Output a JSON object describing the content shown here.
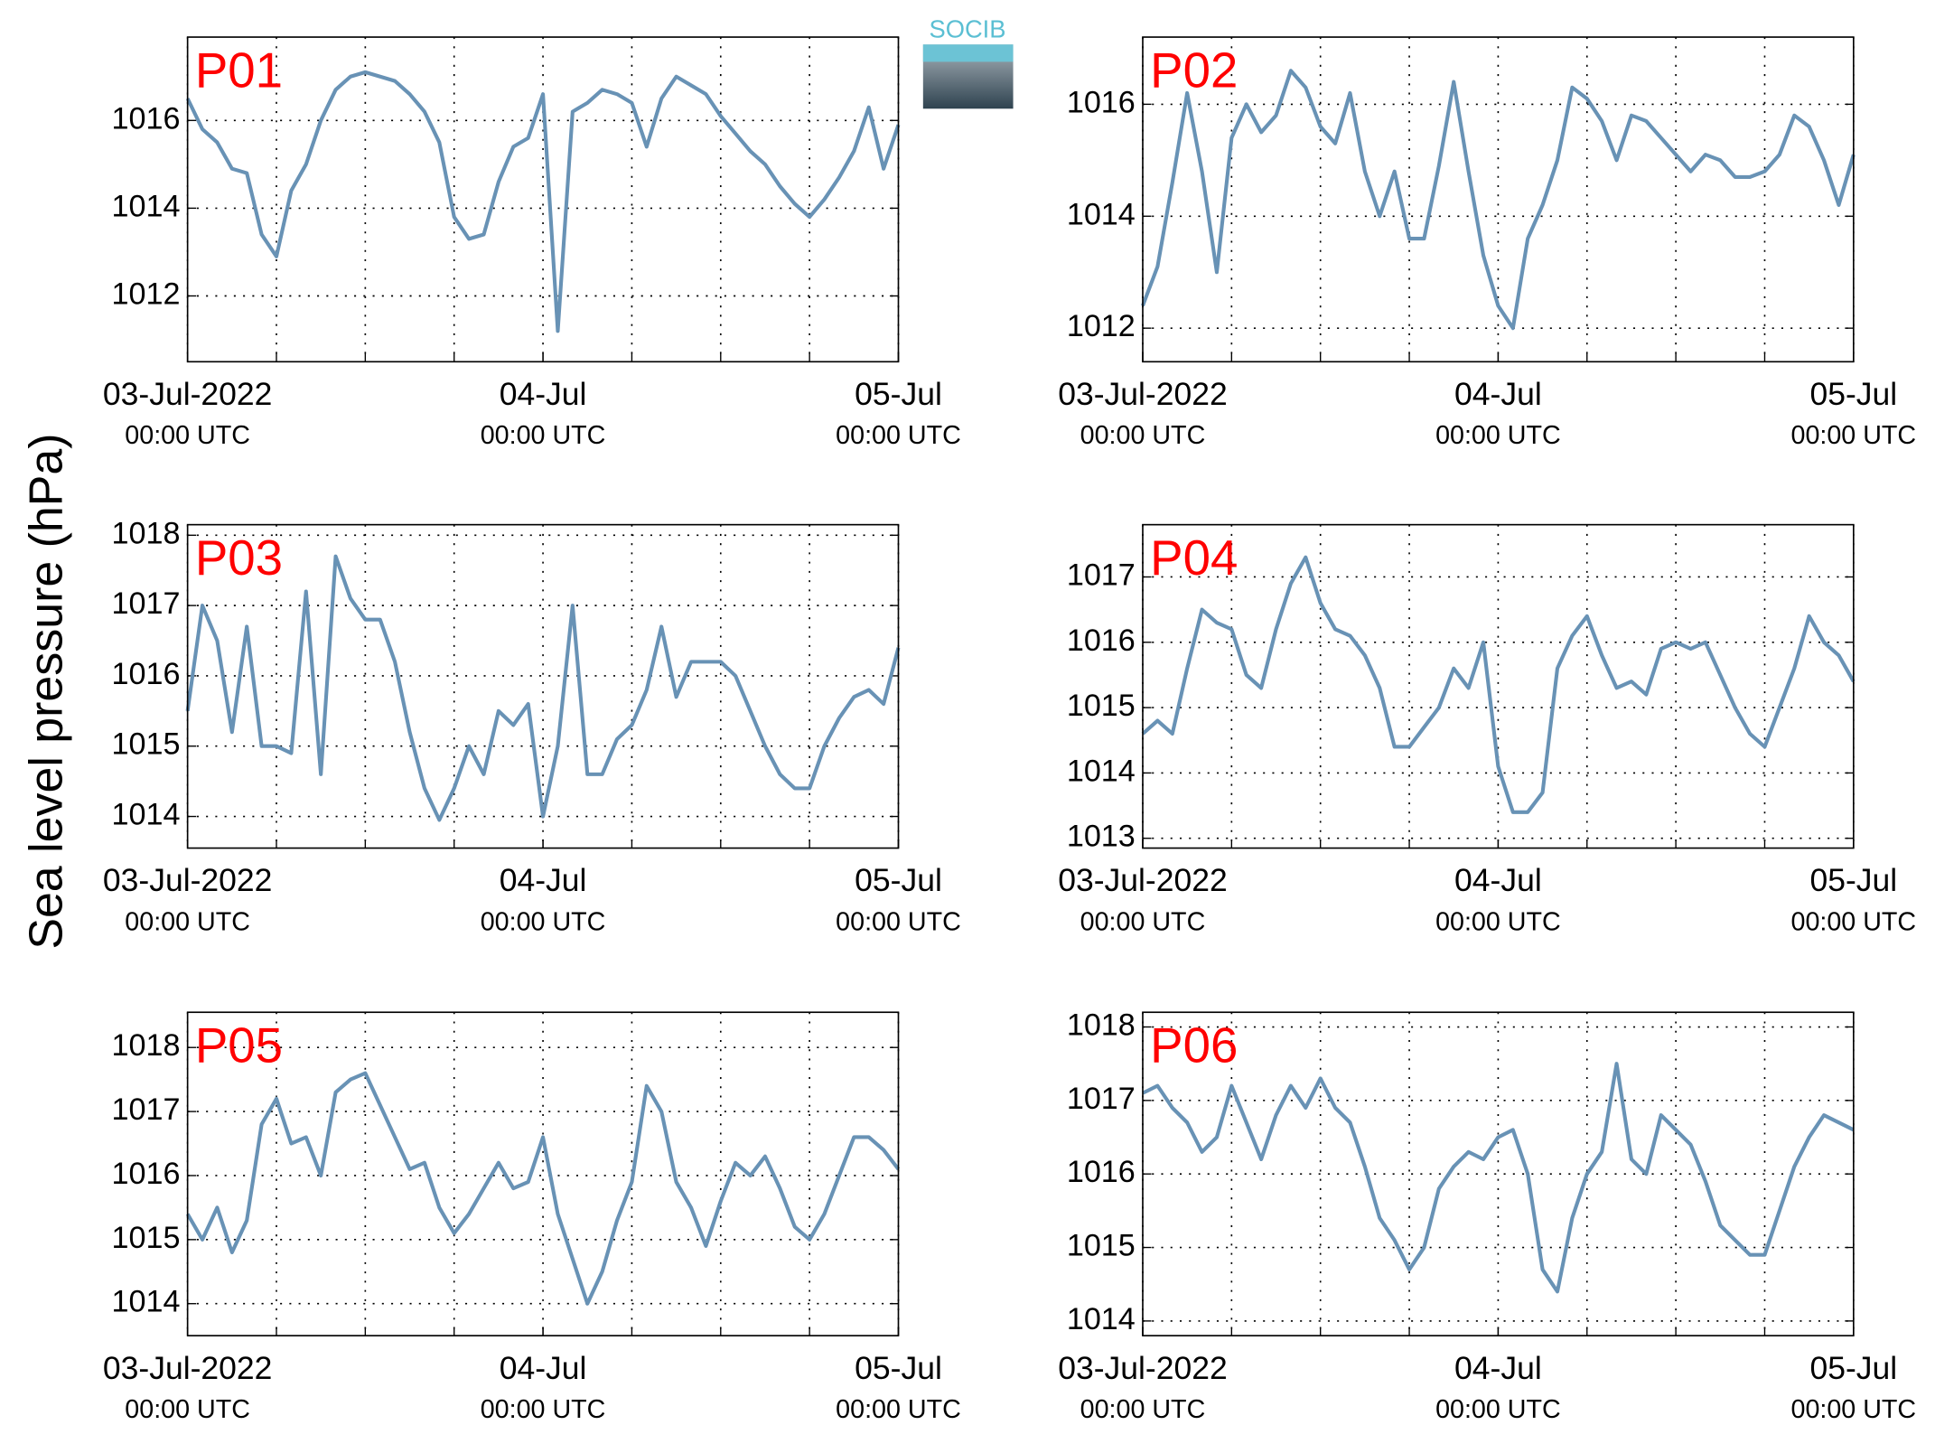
{
  "ylabel": "Sea level pressure (hPa)",
  "logo": "SOCIB",
  "chart_data": [
    {
      "type": "line",
      "title": "P01",
      "color": "#6892b5",
      "grid": true,
      "x": [
        "2022-07-03T00:00",
        "2022-07-03T01:00",
        "2022-07-03T02:00",
        "2022-07-03T03:00",
        "2022-07-03T04:00",
        "2022-07-03T05:00",
        "2022-07-03T06:00",
        "2022-07-03T07:00",
        "2022-07-03T08:00",
        "2022-07-03T09:00",
        "2022-07-03T10:00",
        "2022-07-03T11:00",
        "2022-07-03T12:00",
        "2022-07-03T13:00",
        "2022-07-03T14:00",
        "2022-07-03T15:00",
        "2022-07-03T16:00",
        "2022-07-03T17:00",
        "2022-07-03T18:00",
        "2022-07-03T19:00",
        "2022-07-03T20:00",
        "2022-07-03T21:00",
        "2022-07-03T22:00",
        "2022-07-03T23:00",
        "2022-07-04T00:00",
        "2022-07-04T01:00",
        "2022-07-04T02:00",
        "2022-07-04T03:00",
        "2022-07-04T04:00",
        "2022-07-04T05:00",
        "2022-07-04T06:00",
        "2022-07-04T07:00",
        "2022-07-04T08:00",
        "2022-07-04T09:00",
        "2022-07-04T10:00",
        "2022-07-04T11:00",
        "2022-07-04T12:00",
        "2022-07-04T13:00",
        "2022-07-04T14:00",
        "2022-07-04T15:00",
        "2022-07-04T16:00",
        "2022-07-04T17:00",
        "2022-07-04T18:00",
        "2022-07-04T19:00",
        "2022-07-04T20:00",
        "2022-07-04T21:00",
        "2022-07-04T22:00",
        "2022-07-04T23:00",
        "2022-07-05T00:00"
      ],
      "values": [
        1016.5,
        1015.8,
        1015.5,
        1014.9,
        1014.8,
        1013.4,
        1012.9,
        1014.4,
        1015.0,
        1016.0,
        1016.7,
        1017.0,
        1017.1,
        1017.0,
        1016.9,
        1016.6,
        1016.2,
        1015.5,
        1013.8,
        1013.3,
        1013.4,
        1014.6,
        1015.4,
        1015.6,
        1016.6,
        1011.2,
        1016.2,
        1016.4,
        1016.7,
        1016.6,
        1016.4,
        1015.4,
        1016.5,
        1017.0,
        1016.8,
        1016.6,
        1016.1,
        1015.7,
        1015.3,
        1015.0,
        1014.5,
        1014.1,
        1013.8,
        1014.2,
        1014.7,
        1015.3,
        1016.3,
        1014.9,
        1015.9
      ],
      "xlim": [
        "2022-07-03T00:00",
        "2022-07-05T00:00"
      ],
      "xticks": [
        {
          "value": "2022-07-03T00:00",
          "label": "03-Jul-2022",
          "sublabel": "00:00 UTC"
        },
        {
          "value": "2022-07-04T00:00",
          "label": "04-Jul",
          "sublabel": "00:00 UTC"
        },
        {
          "value": "2022-07-05T00:00",
          "label": "05-Jul",
          "sublabel": "00:00 UTC"
        }
      ],
      "xgrid": [
        "2022-07-03T00:00",
        "2022-07-03T06:00",
        "2022-07-03T12:00",
        "2022-07-03T18:00",
        "2022-07-04T00:00",
        "2022-07-04T06:00",
        "2022-07-04T12:00",
        "2022-07-04T18:00",
        "2022-07-05T00:00"
      ],
      "ylim": [
        1010.5,
        1017.9
      ],
      "yticks": [
        1012,
        1014,
        1016
      ]
    },
    {
      "type": "line",
      "title": "P02",
      "color": "#6892b5",
      "grid": true,
      "x": [
        "2022-07-03T00:00",
        "2022-07-03T01:00",
        "2022-07-03T02:00",
        "2022-07-03T03:00",
        "2022-07-03T04:00",
        "2022-07-03T05:00",
        "2022-07-03T06:00",
        "2022-07-03T07:00",
        "2022-07-03T08:00",
        "2022-07-03T09:00",
        "2022-07-03T10:00",
        "2022-07-03T11:00",
        "2022-07-03T12:00",
        "2022-07-03T13:00",
        "2022-07-03T14:00",
        "2022-07-03T15:00",
        "2022-07-03T16:00",
        "2022-07-03T17:00",
        "2022-07-03T18:00",
        "2022-07-03T19:00",
        "2022-07-03T20:00",
        "2022-07-03T21:00",
        "2022-07-03T22:00",
        "2022-07-03T23:00",
        "2022-07-04T00:00",
        "2022-07-04T01:00",
        "2022-07-04T02:00",
        "2022-07-04T03:00",
        "2022-07-04T04:00",
        "2022-07-04T05:00",
        "2022-07-04T06:00",
        "2022-07-04T07:00",
        "2022-07-04T08:00",
        "2022-07-04T09:00",
        "2022-07-04T10:00",
        "2022-07-04T11:00",
        "2022-07-04T12:00",
        "2022-07-04T13:00",
        "2022-07-04T14:00",
        "2022-07-04T15:00",
        "2022-07-04T16:00",
        "2022-07-04T17:00",
        "2022-07-04T18:00",
        "2022-07-04T19:00",
        "2022-07-04T20:00",
        "2022-07-04T21:00",
        "2022-07-04T22:00",
        "2022-07-04T23:00",
        "2022-07-05T00:00"
      ],
      "values": [
        1012.4,
        1013.1,
        1014.6,
        1016.2,
        1014.8,
        1013.0,
        1015.4,
        1016.0,
        1015.5,
        1015.8,
        1016.6,
        1016.3,
        1015.6,
        1015.3,
        1016.2,
        1014.8,
        1014.0,
        1014.8,
        1013.6,
        1013.6,
        1014.9,
        1016.4,
        1014.8,
        1013.3,
        1012.4,
        1012.0,
        1013.6,
        1014.2,
        1015.0,
        1016.3,
        1016.1,
        1015.7,
        1015.0,
        1015.8,
        1015.7,
        1015.4,
        1015.1,
        1014.8,
        1015.1,
        1015.0,
        1014.7,
        1014.7,
        1014.8,
        1015.1,
        1015.8,
        1015.6,
        1015.0,
        1014.2,
        1015.1
      ],
      "xlim": [
        "2022-07-03T00:00",
        "2022-07-05T00:00"
      ],
      "xticks": [
        {
          "value": "2022-07-03T00:00",
          "label": "03-Jul-2022",
          "sublabel": "00:00 UTC"
        },
        {
          "value": "2022-07-04T00:00",
          "label": "04-Jul",
          "sublabel": "00:00 UTC"
        },
        {
          "value": "2022-07-05T00:00",
          "label": "05-Jul",
          "sublabel": "00:00 UTC"
        }
      ],
      "xgrid": [
        "2022-07-03T00:00",
        "2022-07-03T06:00",
        "2022-07-03T12:00",
        "2022-07-03T18:00",
        "2022-07-04T00:00",
        "2022-07-04T06:00",
        "2022-07-04T12:00",
        "2022-07-04T18:00",
        "2022-07-05T00:00"
      ],
      "ylim": [
        1011.4,
        1017.2
      ],
      "yticks": [
        1012,
        1014,
        1016
      ]
    },
    {
      "type": "line",
      "title": "P03",
      "color": "#6892b5",
      "grid": true,
      "x": [
        "2022-07-03T00:00",
        "2022-07-03T01:00",
        "2022-07-03T02:00",
        "2022-07-03T03:00",
        "2022-07-03T04:00",
        "2022-07-03T05:00",
        "2022-07-03T06:00",
        "2022-07-03T07:00",
        "2022-07-03T08:00",
        "2022-07-03T09:00",
        "2022-07-03T10:00",
        "2022-07-03T11:00",
        "2022-07-03T12:00",
        "2022-07-03T13:00",
        "2022-07-03T14:00",
        "2022-07-03T15:00",
        "2022-07-03T16:00",
        "2022-07-03T17:00",
        "2022-07-03T18:00",
        "2022-07-03T19:00",
        "2022-07-03T20:00",
        "2022-07-03T21:00",
        "2022-07-03T22:00",
        "2022-07-03T23:00",
        "2022-07-04T00:00",
        "2022-07-04T01:00",
        "2022-07-04T02:00",
        "2022-07-04T03:00",
        "2022-07-04T04:00",
        "2022-07-04T05:00",
        "2022-07-04T06:00",
        "2022-07-04T07:00",
        "2022-07-04T08:00",
        "2022-07-04T09:00",
        "2022-07-04T10:00",
        "2022-07-04T11:00",
        "2022-07-04T12:00",
        "2022-07-04T13:00",
        "2022-07-04T14:00",
        "2022-07-04T15:00",
        "2022-07-04T16:00",
        "2022-07-04T17:00",
        "2022-07-04T18:00",
        "2022-07-04T19:00",
        "2022-07-04T20:00",
        "2022-07-04T21:00",
        "2022-07-04T22:00",
        "2022-07-04T23:00",
        "2022-07-05T00:00"
      ],
      "values": [
        1015.5,
        1017.0,
        1016.5,
        1015.2,
        1016.7,
        1015.0,
        1015.0,
        1014.9,
        1017.2,
        1014.6,
        1017.7,
        1017.1,
        1016.8,
        1016.8,
        1016.2,
        1015.2,
        1014.4,
        1013.95,
        1014.4,
        1015.0,
        1014.6,
        1015.5,
        1015.3,
        1015.6,
        1014.0,
        1015.0,
        1017.0,
        1014.6,
        1014.6,
        1015.1,
        1015.3,
        1015.8,
        1016.7,
        1015.7,
        1016.2,
        1016.2,
        1016.2,
        1016.0,
        1015.5,
        1015.0,
        1014.6,
        1014.4,
        1014.4,
        1015.0,
        1015.4,
        1015.7,
        1015.8,
        1015.6,
        1016.4
      ],
      "xlim": [
        "2022-07-03T00:00",
        "2022-07-05T00:00"
      ],
      "xticks": [
        {
          "value": "2022-07-03T00:00",
          "label": "03-Jul-2022",
          "sublabel": "00:00 UTC"
        },
        {
          "value": "2022-07-04T00:00",
          "label": "04-Jul",
          "sublabel": "00:00 UTC"
        },
        {
          "value": "2022-07-05T00:00",
          "label": "05-Jul",
          "sublabel": "00:00 UTC"
        }
      ],
      "xgrid": [
        "2022-07-03T00:00",
        "2022-07-03T06:00",
        "2022-07-03T12:00",
        "2022-07-03T18:00",
        "2022-07-04T00:00",
        "2022-07-04T06:00",
        "2022-07-04T12:00",
        "2022-07-04T18:00",
        "2022-07-05T00:00"
      ],
      "ylim": [
        1013.55,
        1018.15
      ],
      "yticks": [
        1014,
        1015,
        1016,
        1017,
        1018
      ]
    },
    {
      "type": "line",
      "title": "P04",
      "color": "#6892b5",
      "grid": true,
      "x": [
        "2022-07-03T00:00",
        "2022-07-03T01:00",
        "2022-07-03T02:00",
        "2022-07-03T03:00",
        "2022-07-03T04:00",
        "2022-07-03T05:00",
        "2022-07-03T06:00",
        "2022-07-03T07:00",
        "2022-07-03T08:00",
        "2022-07-03T09:00",
        "2022-07-03T10:00",
        "2022-07-03T11:00",
        "2022-07-03T12:00",
        "2022-07-03T13:00",
        "2022-07-03T14:00",
        "2022-07-03T15:00",
        "2022-07-03T16:00",
        "2022-07-03T17:00",
        "2022-07-03T18:00",
        "2022-07-03T19:00",
        "2022-07-03T20:00",
        "2022-07-03T21:00",
        "2022-07-03T22:00",
        "2022-07-03T23:00",
        "2022-07-04T00:00",
        "2022-07-04T01:00",
        "2022-07-04T02:00",
        "2022-07-04T03:00",
        "2022-07-04T04:00",
        "2022-07-04T05:00",
        "2022-07-04T06:00",
        "2022-07-04T07:00",
        "2022-07-04T08:00",
        "2022-07-04T09:00",
        "2022-07-04T10:00",
        "2022-07-04T11:00",
        "2022-07-04T12:00",
        "2022-07-04T13:00",
        "2022-07-04T14:00",
        "2022-07-04T15:00",
        "2022-07-04T16:00",
        "2022-07-04T17:00",
        "2022-07-04T18:00",
        "2022-07-04T19:00",
        "2022-07-04T20:00",
        "2022-07-04T21:00",
        "2022-07-04T22:00",
        "2022-07-04T23:00",
        "2022-07-05T00:00"
      ],
      "values": [
        1014.6,
        1014.8,
        1014.6,
        1015.6,
        1016.5,
        1016.3,
        1016.2,
        1015.5,
        1015.3,
        1016.2,
        1016.9,
        1017.3,
        1016.6,
        1016.2,
        1016.1,
        1015.8,
        1015.3,
        1014.4,
        1014.4,
        1014.7,
        1015.0,
        1015.6,
        1015.3,
        1016.0,
        1014.1,
        1013.4,
        1013.4,
        1013.7,
        1015.6,
        1016.1,
        1016.4,
        1015.8,
        1015.3,
        1015.4,
        1015.2,
        1015.9,
        1016.0,
        1015.9,
        1016.0,
        1015.5,
        1015.0,
        1014.6,
        1014.4,
        1015.0,
        1015.6,
        1016.4,
        1016.0,
        1015.8,
        1015.4
      ],
      "xlim": [
        "2022-07-03T00:00",
        "2022-07-05T00:00"
      ],
      "xticks": [
        {
          "value": "2022-07-03T00:00",
          "label": "03-Jul-2022",
          "sublabel": "00:00 UTC"
        },
        {
          "value": "2022-07-04T00:00",
          "label": "04-Jul",
          "sublabel": "00:00 UTC"
        },
        {
          "value": "2022-07-05T00:00",
          "label": "05-Jul",
          "sublabel": "00:00 UTC"
        }
      ],
      "xgrid": [
        "2022-07-03T00:00",
        "2022-07-03T06:00",
        "2022-07-03T12:00",
        "2022-07-03T18:00",
        "2022-07-04T00:00",
        "2022-07-04T06:00",
        "2022-07-04T12:00",
        "2022-07-04T18:00",
        "2022-07-05T00:00"
      ],
      "ylim": [
        1012.85,
        1017.8
      ],
      "yticks": [
        1013,
        1014,
        1015,
        1016,
        1017
      ]
    },
    {
      "type": "line",
      "title": "P05",
      "color": "#6892b5",
      "grid": true,
      "x": [
        "2022-07-03T00:00",
        "2022-07-03T01:00",
        "2022-07-03T02:00",
        "2022-07-03T03:00",
        "2022-07-03T04:00",
        "2022-07-03T05:00",
        "2022-07-03T06:00",
        "2022-07-03T07:00",
        "2022-07-03T08:00",
        "2022-07-03T09:00",
        "2022-07-03T10:00",
        "2022-07-03T11:00",
        "2022-07-03T12:00",
        "2022-07-03T13:00",
        "2022-07-03T14:00",
        "2022-07-03T15:00",
        "2022-07-03T16:00",
        "2022-07-03T17:00",
        "2022-07-03T18:00",
        "2022-07-03T19:00",
        "2022-07-03T20:00",
        "2022-07-03T21:00",
        "2022-07-03T22:00",
        "2022-07-03T23:00",
        "2022-07-04T00:00",
        "2022-07-04T01:00",
        "2022-07-04T02:00",
        "2022-07-04T03:00",
        "2022-07-04T04:00",
        "2022-07-04T05:00",
        "2022-07-04T06:00",
        "2022-07-04T07:00",
        "2022-07-04T08:00",
        "2022-07-04T09:00",
        "2022-07-04T10:00",
        "2022-07-04T11:00",
        "2022-07-04T12:00",
        "2022-07-04T13:00",
        "2022-07-04T14:00",
        "2022-07-04T15:00",
        "2022-07-04T16:00",
        "2022-07-04T17:00",
        "2022-07-04T18:00",
        "2022-07-04T19:00",
        "2022-07-04T20:00",
        "2022-07-04T21:00",
        "2022-07-04T22:00",
        "2022-07-04T23:00",
        "2022-07-05T00:00"
      ],
      "values": [
        1015.4,
        1015.0,
        1015.5,
        1014.8,
        1015.3,
        1016.8,
        1017.2,
        1016.5,
        1016.6,
        1016.0,
        1017.3,
        1017.5,
        1017.6,
        1017.1,
        1016.6,
        1016.1,
        1016.2,
        1015.5,
        1015.1,
        1015.4,
        1015.8,
        1016.2,
        1015.8,
        1015.9,
        1016.6,
        1015.4,
        1014.7,
        1014.0,
        1014.5,
        1015.3,
        1015.9,
        1017.4,
        1017.0,
        1015.9,
        1015.5,
        1014.9,
        1015.6,
        1016.2,
        1016.0,
        1016.3,
        1015.8,
        1015.2,
        1015.0,
        1015.4,
        1016.0,
        1016.6,
        1016.6,
        1016.4,
        1016.1
      ],
      "xlim": [
        "2022-07-03T00:00",
        "2022-07-05T00:00"
      ],
      "xticks": [
        {
          "value": "2022-07-03T00:00",
          "label": "03-Jul-2022",
          "sublabel": "00:00 UTC"
        },
        {
          "value": "2022-07-04T00:00",
          "label": "04-Jul",
          "sublabel": "00:00 UTC"
        },
        {
          "value": "2022-07-05T00:00",
          "label": "05-Jul",
          "sublabel": "00:00 UTC"
        }
      ],
      "xgrid": [
        "2022-07-03T00:00",
        "2022-07-03T06:00",
        "2022-07-03T12:00",
        "2022-07-03T18:00",
        "2022-07-04T00:00",
        "2022-07-04T06:00",
        "2022-07-04T12:00",
        "2022-07-04T18:00",
        "2022-07-05T00:00"
      ],
      "ylim": [
        1013.5,
        1018.55
      ],
      "yticks": [
        1014,
        1015,
        1016,
        1017,
        1018
      ]
    },
    {
      "type": "line",
      "title": "P06",
      "color": "#6892b5",
      "grid": true,
      "x": [
        "2022-07-03T00:00",
        "2022-07-03T01:00",
        "2022-07-03T02:00",
        "2022-07-03T03:00",
        "2022-07-03T04:00",
        "2022-07-03T05:00",
        "2022-07-03T06:00",
        "2022-07-03T07:00",
        "2022-07-03T08:00",
        "2022-07-03T09:00",
        "2022-07-03T10:00",
        "2022-07-03T11:00",
        "2022-07-03T12:00",
        "2022-07-03T13:00",
        "2022-07-03T14:00",
        "2022-07-03T15:00",
        "2022-07-03T16:00",
        "2022-07-03T17:00",
        "2022-07-03T18:00",
        "2022-07-03T19:00",
        "2022-07-03T20:00",
        "2022-07-03T21:00",
        "2022-07-03T22:00",
        "2022-07-03T23:00",
        "2022-07-04T00:00",
        "2022-07-04T01:00",
        "2022-07-04T02:00",
        "2022-07-04T03:00",
        "2022-07-04T04:00",
        "2022-07-04T05:00",
        "2022-07-04T06:00",
        "2022-07-04T07:00",
        "2022-07-04T08:00",
        "2022-07-04T09:00",
        "2022-07-04T10:00",
        "2022-07-04T11:00",
        "2022-07-04T12:00",
        "2022-07-04T13:00",
        "2022-07-04T14:00",
        "2022-07-04T15:00",
        "2022-07-04T16:00",
        "2022-07-04T17:00",
        "2022-07-04T18:00",
        "2022-07-04T19:00",
        "2022-07-04T20:00",
        "2022-07-04T21:00",
        "2022-07-04T22:00",
        "2022-07-04T23:00",
        "2022-07-05T00:00"
      ],
      "values": [
        1017.1,
        1017.2,
        1016.9,
        1016.7,
        1016.3,
        1016.5,
        1017.2,
        1016.7,
        1016.2,
        1016.8,
        1017.2,
        1016.9,
        1017.3,
        1016.9,
        1016.7,
        1016.1,
        1015.4,
        1015.1,
        1014.7,
        1015.0,
        1015.8,
        1016.1,
        1016.3,
        1016.2,
        1016.5,
        1016.6,
        1016.0,
        1014.7,
        1014.4,
        1015.4,
        1016.0,
        1016.3,
        1017.5,
        1016.2,
        1016.0,
        1016.8,
        1016.6,
        1016.4,
        1015.9,
        1015.3,
        1015.1,
        1014.9,
        1014.9,
        1015.5,
        1016.1,
        1016.5,
        1016.8,
        1016.7,
        1016.6
      ],
      "xlim": [
        "2022-07-03T00:00",
        "2022-07-05T00:00"
      ],
      "xticks": [
        {
          "value": "2022-07-03T00:00",
          "label": "03-Jul-2022",
          "sublabel": "00:00 UTC"
        },
        {
          "value": "2022-07-04T00:00",
          "label": "04-Jul",
          "sublabel": "00:00 UTC"
        },
        {
          "value": "2022-07-05T00:00",
          "label": "05-Jul",
          "sublabel": "00:00 UTC"
        }
      ],
      "xgrid": [
        "2022-07-03T00:00",
        "2022-07-03T06:00",
        "2022-07-03T12:00",
        "2022-07-03T18:00",
        "2022-07-04T00:00",
        "2022-07-04T06:00",
        "2022-07-04T12:00",
        "2022-07-04T18:00",
        "2022-07-05T00:00"
      ],
      "ylim": [
        1013.8,
        1018.2
      ],
      "yticks": [
        1014,
        1015,
        1016,
        1017,
        1018
      ]
    }
  ]
}
